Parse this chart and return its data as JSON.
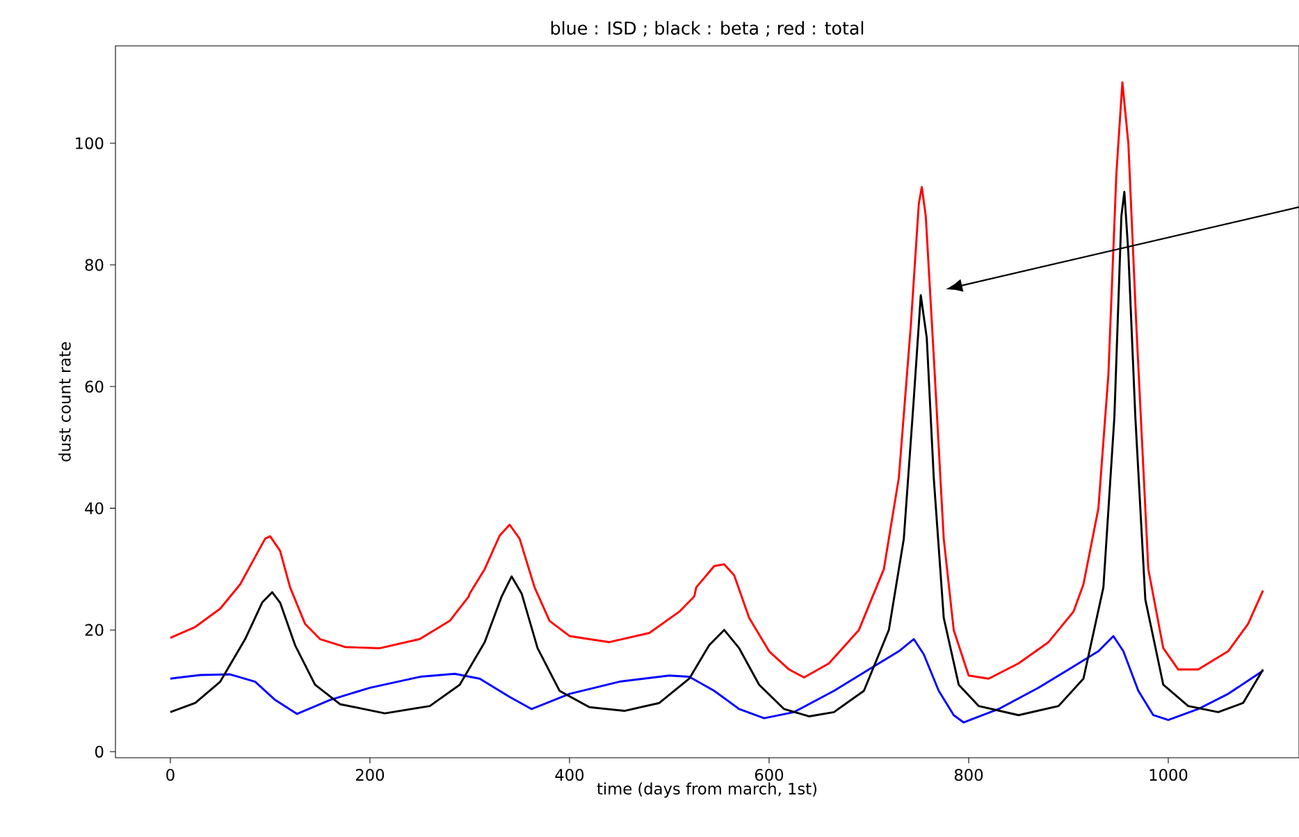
{
  "chart_data": {
    "type": "line",
    "title": "blue : ISD ; black : beta ; red : total",
    "xlabel": "time (days from march, 1st)",
    "ylabel": "dust count rate",
    "xlim": [
      -55,
      1131
    ],
    "ylim": [
      -1,
      116
    ],
    "xticks": [
      0,
      200,
      400,
      600,
      800,
      1000
    ],
    "yticks": [
      0,
      20,
      40,
      60,
      80,
      100
    ],
    "line_style": "solid",
    "marker": "none",
    "series": [
      {
        "color": "#0000ff",
        "x": [
          0,
          30,
          60,
          85,
          105,
          127,
          160,
          200,
          250,
          285,
          310,
          340,
          362,
          400,
          450,
          500,
          520,
          545,
          570,
          595,
          625,
          665,
          700,
          730,
          745,
          755,
          770,
          785,
          795,
          830,
          870,
          905,
          930,
          945,
          955,
          970,
          985,
          1000,
          1030,
          1060,
          1095
        ],
        "values": [
          12,
          12.6,
          12.7,
          11.5,
          8.5,
          6.2,
          8.5,
          10.5,
          12.3,
          12.8,
          12,
          9,
          7,
          9.5,
          11.5,
          12.5,
          12.3,
          10,
          7,
          5.5,
          6.5,
          10,
          13.5,
          16.5,
          18.5,
          16,
          10,
          6,
          4.8,
          7,
          10.5,
          14,
          16.5,
          19,
          16.5,
          10,
          6,
          5.2,
          7,
          9.5,
          13.3
        ]
      },
      {
        "color": "#000000",
        "x": [
          0,
          25,
          50,
          75,
          92,
          102,
          110,
          125,
          145,
          170,
          215,
          260,
          290,
          315,
          332,
          342,
          352,
          368,
          390,
          420,
          455,
          490,
          520,
          540,
          555,
          570,
          590,
          615,
          640,
          665,
          695,
          720,
          735,
          745,
          752,
          758,
          765,
          775,
          790,
          810,
          850,
          890,
          915,
          935,
          946,
          953,
          956,
          960,
          967,
          977,
          995,
          1020,
          1050,
          1075,
          1095
        ],
        "values": [
          6.5,
          8,
          11.5,
          18.5,
          24.5,
          26.2,
          24.5,
          17.5,
          11,
          7.8,
          6.3,
          7.5,
          11,
          18,
          25.5,
          28.8,
          26,
          17,
          10,
          7.3,
          6.7,
          8,
          12,
          17.5,
          20,
          17,
          11,
          7,
          5.8,
          6.5,
          10,
          20,
          35,
          58,
          75,
          68,
          45,
          22,
          11,
          7.5,
          6,
          7.5,
          12,
          27,
          55,
          88,
          92,
          82,
          55,
          25,
          11,
          7.5,
          6.5,
          8,
          13.5
        ]
      },
      {
        "color": "#ff0000",
        "x": [
          0,
          25,
          50,
          70,
          85,
          95,
          100,
          110,
          120,
          135,
          150,
          175,
          210,
          250,
          280,
          299,
          300,
          315,
          330,
          340,
          350,
          365,
          380,
          400,
          440,
          480,
          510,
          525,
          527,
          545,
          555,
          565,
          580,
          600,
          620,
          635,
          660,
          690,
          715,
          730,
          742,
          750,
          753,
          757,
          765,
          775,
          785,
          800,
          820,
          850,
          880,
          905,
          915,
          930,
          940,
          948,
          954,
          960,
          968,
          980,
          995,
          1010,
          1030,
          1060,
          1080,
          1095
        ],
        "values": [
          18.7,
          20.5,
          23.5,
          27.5,
          32,
          35,
          35.4,
          33,
          27,
          21,
          18.5,
          17.2,
          17,
          18.5,
          21.5,
          25.5,
          26,
          30,
          35.5,
          37.3,
          35,
          27,
          21.5,
          19,
          18,
          19.5,
          23,
          25.5,
          27,
          30.5,
          30.8,
          29,
          22,
          16.5,
          13.5,
          12.2,
          14.5,
          20,
          30,
          45,
          70,
          90,
          92.8,
          88,
          65,
          35,
          20,
          12.5,
          12,
          14.5,
          18,
          23,
          27.5,
          40,
          62,
          95,
          110,
          100,
          70,
          30,
          17,
          13.5,
          13.5,
          16.5,
          21,
          26.5
        ]
      }
    ]
  }
}
